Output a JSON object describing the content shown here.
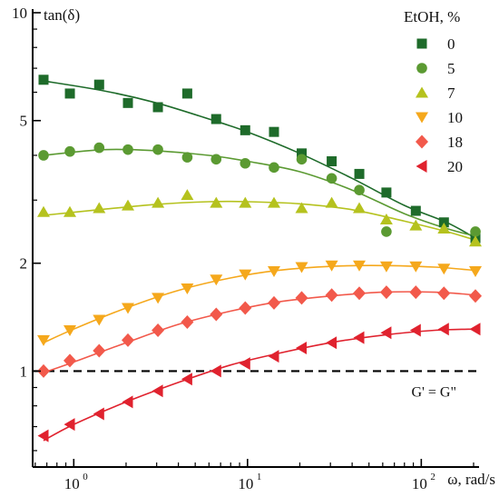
{
  "chart_data": {
    "type": "scatter",
    "x_scale": "log",
    "y_scale": "log",
    "xlim": [
      0.58,
      215
    ],
    "ylim": [
      0.54,
      10
    ],
    "xlabel": "ω, rad/s",
    "ylabel": "tan(δ)",
    "x_ticks": [
      {
        "value": 1,
        "base": "10",
        "exp": "0"
      },
      {
        "value": 10,
        "base": "10",
        "exp": "1"
      },
      {
        "value": 100,
        "base": "10",
        "exp": "2"
      }
    ],
    "y_ticks": [
      {
        "value": 1,
        "label": "1"
      },
      {
        "value": 2,
        "label": "2"
      },
      {
        "value": 5,
        "label": "5"
      },
      {
        "value": 10,
        "label": "10"
      }
    ],
    "legend": {
      "title": "EtOH, %",
      "position": "top-right"
    },
    "reference_line": {
      "y": 1,
      "style": "dashed",
      "label": "G' = G\""
    },
    "series": [
      {
        "name": "0",
        "marker": "square",
        "color": "#1e6b2a",
        "points": [
          [
            0.67,
            6.5
          ],
          [
            0.95,
            5.95
          ],
          [
            1.4,
            6.3
          ],
          [
            2.05,
            5.6
          ],
          [
            3.05,
            5.45
          ],
          [
            4.5,
            5.95
          ],
          [
            6.6,
            5.05
          ],
          [
            9.7,
            4.7
          ],
          [
            14.2,
            4.65
          ],
          [
            20.5,
            4.05
          ],
          [
            30.5,
            3.85
          ],
          [
            44,
            3.55
          ],
          [
            63,
            3.15
          ],
          [
            93,
            2.8
          ],
          [
            135,
            2.6
          ],
          [
            205,
            2.35
          ]
        ],
        "fit": [
          [
            0.67,
            6.45
          ],
          [
            1.5,
            6.05
          ],
          [
            3,
            5.6
          ],
          [
            6,
            5.05
          ],
          [
            10,
            4.65
          ],
          [
            20,
            4.05
          ],
          [
            40,
            3.45
          ],
          [
            80,
            2.9
          ],
          [
            140,
            2.6
          ],
          [
            205,
            2.35
          ]
        ]
      },
      {
        "name": "5",
        "marker": "circle",
        "color": "#5b9a32",
        "points": [
          [
            0.67,
            4.0
          ],
          [
            0.95,
            4.1
          ],
          [
            1.4,
            4.2
          ],
          [
            2.05,
            4.15
          ],
          [
            3.05,
            4.15
          ],
          [
            4.5,
            3.95
          ],
          [
            6.6,
            3.9
          ],
          [
            9.7,
            3.8
          ],
          [
            14.2,
            3.7
          ],
          [
            20.5,
            3.9
          ],
          [
            30.5,
            3.45
          ],
          [
            44,
            3.2
          ],
          [
            63,
            2.45
          ],
          [
            205,
            2.45
          ]
        ],
        "fit": [
          [
            0.67,
            4.0
          ],
          [
            1.5,
            4.15
          ],
          [
            3,
            4.12
          ],
          [
            6,
            4.0
          ],
          [
            10,
            3.85
          ],
          [
            20,
            3.6
          ],
          [
            40,
            3.2
          ],
          [
            80,
            2.75
          ],
          [
            140,
            2.5
          ],
          [
            205,
            2.38
          ]
        ]
      },
      {
        "name": "7",
        "marker": "triangle-up",
        "color": "#b5c21e",
        "points": [
          [
            0.67,
            2.78
          ],
          [
            0.95,
            2.78
          ],
          [
            1.4,
            2.85
          ],
          [
            2.05,
            2.9
          ],
          [
            3.05,
            2.95
          ],
          [
            4.5,
            3.1
          ],
          [
            6.6,
            2.95
          ],
          [
            9.7,
            2.95
          ],
          [
            14.2,
            2.95
          ],
          [
            20.5,
            2.85
          ],
          [
            30.5,
            2.95
          ],
          [
            44,
            2.85
          ],
          [
            63,
            2.65
          ],
          [
            93,
            2.55
          ],
          [
            135,
            2.5
          ],
          [
            205,
            2.3
          ]
        ],
        "fit": [
          [
            0.67,
            2.72
          ],
          [
            1.5,
            2.83
          ],
          [
            3,
            2.92
          ],
          [
            6,
            2.97
          ],
          [
            10,
            2.97
          ],
          [
            20,
            2.93
          ],
          [
            40,
            2.82
          ],
          [
            80,
            2.62
          ],
          [
            140,
            2.45
          ],
          [
            205,
            2.32
          ]
        ]
      },
      {
        "name": "10",
        "marker": "triangle-down",
        "color": "#f5a81c",
        "points": [
          [
            0.67,
            1.22
          ],
          [
            0.95,
            1.3
          ],
          [
            1.4,
            1.39
          ],
          [
            2.05,
            1.5
          ],
          [
            3.05,
            1.6
          ],
          [
            4.5,
            1.7
          ],
          [
            6.6,
            1.8
          ],
          [
            9.7,
            1.86
          ],
          [
            14.2,
            1.9
          ],
          [
            20.5,
            1.95
          ],
          [
            30.5,
            1.97
          ],
          [
            44,
            1.97
          ],
          [
            63,
            1.96
          ],
          [
            93,
            1.96
          ],
          [
            135,
            1.93
          ],
          [
            205,
            1.9
          ]
        ],
        "fit": [
          [
            0.67,
            1.2
          ],
          [
            1,
            1.31
          ],
          [
            2,
            1.5
          ],
          [
            4,
            1.68
          ],
          [
            8,
            1.82
          ],
          [
            15,
            1.91
          ],
          [
            30,
            1.96
          ],
          [
            60,
            1.97
          ],
          [
            120,
            1.95
          ],
          [
            205,
            1.91
          ]
        ]
      },
      {
        "name": "18",
        "marker": "diamond",
        "color": "#f2594b",
        "points": [
          [
            0.67,
            1.0
          ],
          [
            0.95,
            1.07
          ],
          [
            1.4,
            1.14
          ],
          [
            2.05,
            1.22
          ],
          [
            3.05,
            1.3
          ],
          [
            4.5,
            1.37
          ],
          [
            6.6,
            1.44
          ],
          [
            9.7,
            1.5
          ],
          [
            14.2,
            1.55
          ],
          [
            20.5,
            1.6
          ],
          [
            30.5,
            1.63
          ],
          [
            44,
            1.65
          ],
          [
            63,
            1.66
          ],
          [
            93,
            1.66
          ],
          [
            135,
            1.65
          ],
          [
            205,
            1.62
          ]
        ],
        "fit": [
          [
            0.67,
            0.99
          ],
          [
            1,
            1.06
          ],
          [
            2,
            1.2
          ],
          [
            4,
            1.35
          ],
          [
            8,
            1.47
          ],
          [
            15,
            1.56
          ],
          [
            30,
            1.62
          ],
          [
            60,
            1.66
          ],
          [
            120,
            1.66
          ],
          [
            205,
            1.63
          ]
        ]
      },
      {
        "name": "20",
        "marker": "triangle-left",
        "color": "#e0222e",
        "points": [
          [
            0.67,
            0.66
          ],
          [
            0.95,
            0.71
          ],
          [
            1.4,
            0.76
          ],
          [
            2.05,
            0.82
          ],
          [
            3.05,
            0.88
          ],
          [
            4.5,
            0.95
          ],
          [
            6.6,
            1.0
          ],
          [
            9.7,
            1.05
          ],
          [
            14.2,
            1.1
          ],
          [
            20.5,
            1.16
          ],
          [
            30.5,
            1.2
          ],
          [
            44,
            1.24
          ],
          [
            63,
            1.28
          ],
          [
            93,
            1.3
          ],
          [
            135,
            1.31
          ],
          [
            205,
            1.31
          ]
        ],
        "fit": [
          [
            0.67,
            0.64
          ],
          [
            1,
            0.71
          ],
          [
            2,
            0.82
          ],
          [
            4,
            0.93
          ],
          [
            8,
            1.04
          ],
          [
            15,
            1.12
          ],
          [
            30,
            1.2
          ],
          [
            60,
            1.26
          ],
          [
            120,
            1.3
          ],
          [
            205,
            1.31
          ]
        ]
      }
    ]
  }
}
